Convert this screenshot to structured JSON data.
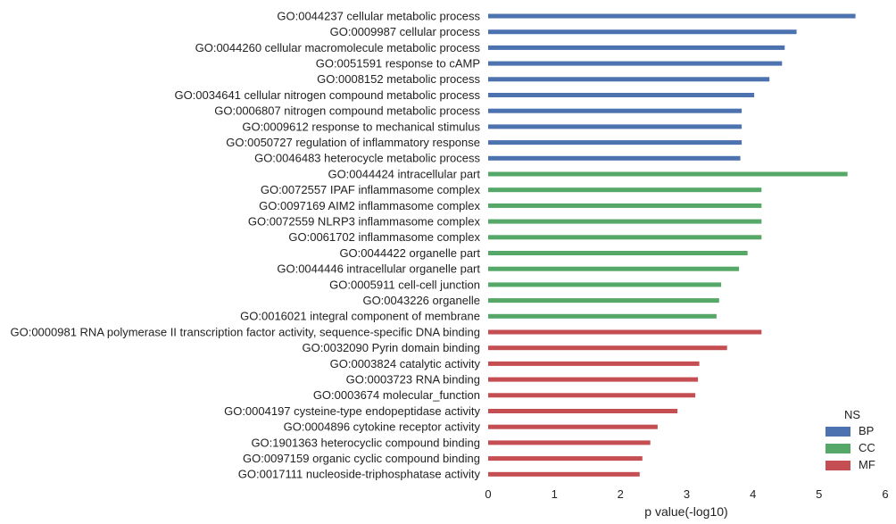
{
  "chart_data": {
    "type": "bar",
    "orientation": "horizontal",
    "xlabel": "p value(-log10)",
    "xlim": [
      0,
      6
    ],
    "xticks": [
      0,
      1,
      2,
      3,
      4,
      5,
      6
    ],
    "grid": false,
    "legend": {
      "title": "NS",
      "placement": "bottom-right",
      "entries": [
        "BP",
        "CC",
        "MF"
      ]
    },
    "colors": {
      "BP": "#4c72b0",
      "CC": "#55a868",
      "MF": "#c44e52"
    },
    "bars": [
      {
        "label": "GO:0044237 cellular metabolic process",
        "value": 5.55,
        "ns": "BP"
      },
      {
        "label": "GO:0009987 cellular process",
        "value": 4.66,
        "ns": "BP"
      },
      {
        "label": "GO:0044260 cellular macromolecule metabolic process",
        "value": 4.48,
        "ns": "BP"
      },
      {
        "label": "GO:0051591 response to cAMP",
        "value": 4.44,
        "ns": "BP"
      },
      {
        "label": "GO:0008152 metabolic process",
        "value": 4.25,
        "ns": "BP"
      },
      {
        "label": "GO:0034641 cellular nitrogen compound metabolic process",
        "value": 4.02,
        "ns": "BP"
      },
      {
        "label": "GO:0006807 nitrogen compound metabolic process",
        "value": 3.83,
        "ns": "BP"
      },
      {
        "label": "GO:0009612 response to mechanical stimulus",
        "value": 3.83,
        "ns": "BP"
      },
      {
        "label": "GO:0050727 regulation of inflammatory response",
        "value": 3.83,
        "ns": "BP"
      },
      {
        "label": "GO:0046483 heterocycle metabolic process",
        "value": 3.81,
        "ns": "BP"
      },
      {
        "label": "GO:0044424 intracellular part",
        "value": 5.43,
        "ns": "CC"
      },
      {
        "label": "GO:0072557 IPAF inflammasome complex",
        "value": 4.13,
        "ns": "CC"
      },
      {
        "label": "GO:0097169 AIM2 inflammasome complex",
        "value": 4.13,
        "ns": "CC"
      },
      {
        "label": "GO:0072559 NLRP3 inflammasome complex",
        "value": 4.13,
        "ns": "CC"
      },
      {
        "label": "GO:0061702 inflammasome complex",
        "value": 4.13,
        "ns": "CC"
      },
      {
        "label": "GO:0044422 organelle part",
        "value": 3.92,
        "ns": "CC"
      },
      {
        "label": "GO:0044446 intracellular organelle part",
        "value": 3.79,
        "ns": "CC"
      },
      {
        "label": "GO:0005911 cell-cell junction",
        "value": 3.52,
        "ns": "CC"
      },
      {
        "label": "GO:0043226 organelle",
        "value": 3.49,
        "ns": "CC"
      },
      {
        "label": "GO:0016021 integral component of membrane",
        "value": 3.45,
        "ns": "CC"
      },
      {
        "label": "GO:0000981 RNA polymerase II transcription factor activity, sequence-specific DNA binding",
        "value": 4.13,
        "ns": "MF"
      },
      {
        "label": "GO:0032090 Pyrin domain binding",
        "value": 3.61,
        "ns": "MF"
      },
      {
        "label": "GO:0003824 catalytic activity",
        "value": 3.19,
        "ns": "MF"
      },
      {
        "label": "GO:0003723 RNA binding",
        "value": 3.17,
        "ns": "MF"
      },
      {
        "label": "GO:0003674 molecular_function",
        "value": 3.13,
        "ns": "MF"
      },
      {
        "label": "GO:0004197 cysteine-type endopeptidase activity",
        "value": 2.86,
        "ns": "MF"
      },
      {
        "label": "GO:0004896 cytokine receptor activity",
        "value": 2.56,
        "ns": "MF"
      },
      {
        "label": "GO:1901363 heterocyclic compound binding",
        "value": 2.45,
        "ns": "MF"
      },
      {
        "label": "GO:0097159 organic cyclic compound binding",
        "value": 2.33,
        "ns": "MF"
      },
      {
        "label": "GO:0017111 nucleoside-triphosphatase activity",
        "value": 2.29,
        "ns": "MF"
      }
    ]
  }
}
